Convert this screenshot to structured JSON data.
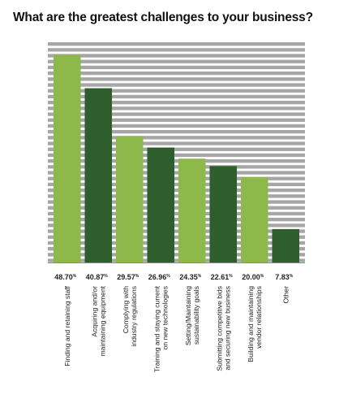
{
  "chart_data": {
    "type": "bar",
    "title": "What are the greatest challenges to your business?",
    "categories": [
      [
        "Finding and retaining staff"
      ],
      [
        "Acquiring and/or",
        "maintaining equipment"
      ],
      [
        "Complying with",
        "industry regulations"
      ],
      [
        "Training and staying current",
        "on new technologies"
      ],
      [
        "Setting/Maintaining",
        "sustainability goals"
      ],
      [
        "Submitting competitive bids",
        "and securing new business"
      ],
      [
        "Building and maintaining",
        "vendor relationships"
      ],
      [
        "Other"
      ]
    ],
    "values": [
      48.7,
      40.87,
      29.57,
      26.96,
      24.35,
      22.61,
      20.0,
      7.83
    ],
    "value_labels": [
      "48.70",
      "40.87",
      "29.57",
      "26.96",
      "24.35",
      "22.61",
      "20.00",
      "7.83"
    ],
    "value_suffix": "%",
    "ylim": [
      0,
      50
    ],
    "grid": "horizontal stripes",
    "colors": {
      "light_bar": "#8db84a",
      "dark_bar": "#2e5e2c",
      "stripe": "#a6a6a6",
      "background": "#ffffff"
    },
    "bar_color_pattern": [
      "light",
      "dark",
      "light",
      "dark",
      "light",
      "dark",
      "light",
      "dark"
    ]
  }
}
